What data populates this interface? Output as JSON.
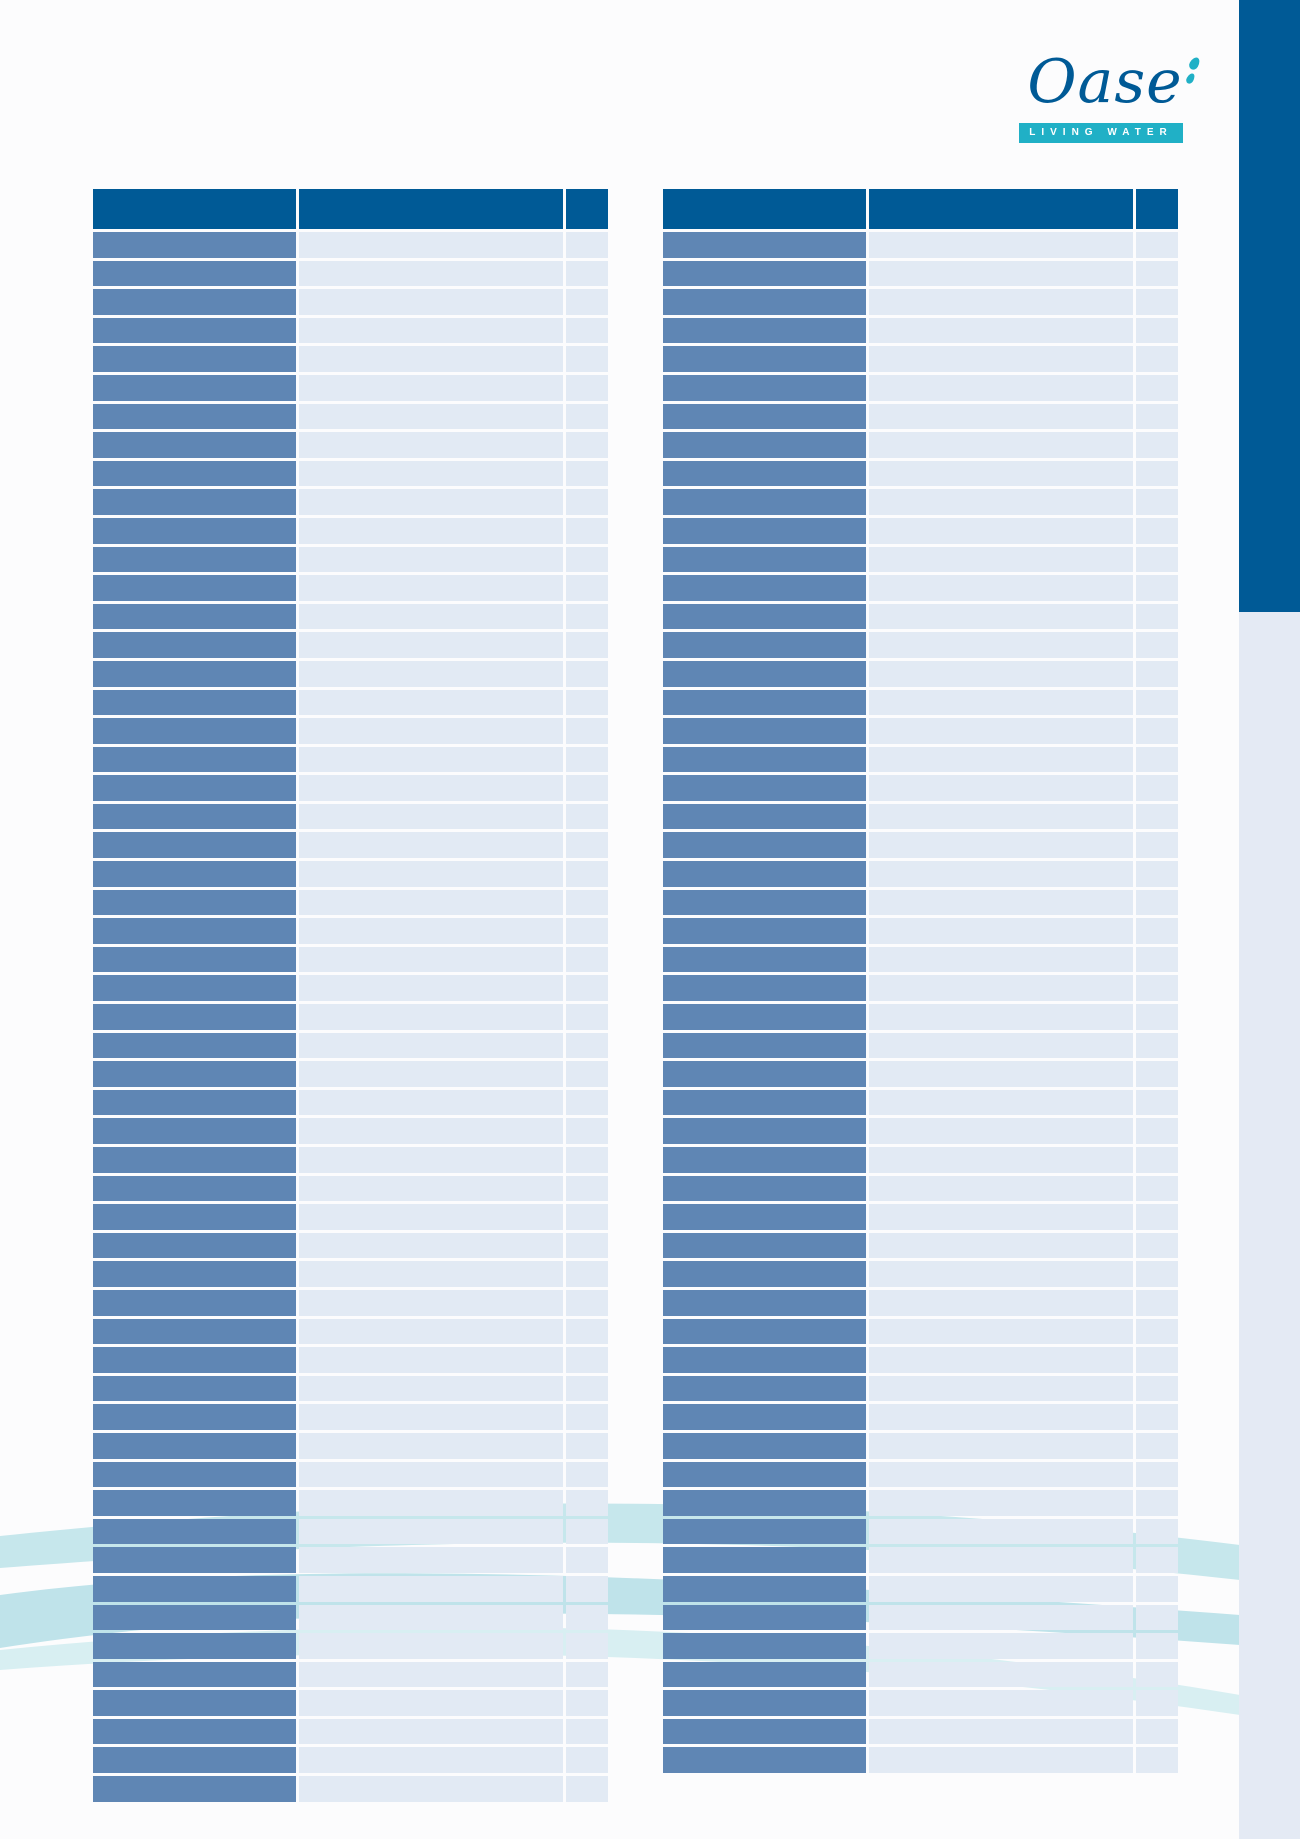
{
  "brand": {
    "logo_text": "Oase",
    "tagline": "LIVING WATER"
  },
  "colors": {
    "header_blue": "#005a96",
    "col1_blue": "#5f86b4",
    "cell_light": "#e2eaf4",
    "side_light": "#e4eaf4",
    "wave_teal": "#b8e0e7",
    "logo_cyan": "#20b0c6"
  },
  "tables": [
    {
      "columns": [
        "",
        "",
        ""
      ],
      "rows": [
        [
          "",
          "",
          ""
        ],
        [
          "",
          "",
          ""
        ],
        [
          "",
          "",
          ""
        ],
        [
          "",
          "",
          ""
        ],
        [
          "",
          "",
          ""
        ],
        [
          "",
          "",
          ""
        ],
        [
          "",
          "",
          ""
        ],
        [
          "",
          "",
          ""
        ],
        [
          "",
          "",
          ""
        ],
        [
          "",
          "",
          ""
        ],
        [
          "",
          "",
          ""
        ],
        [
          "",
          "",
          ""
        ],
        [
          "",
          "",
          ""
        ],
        [
          "",
          "",
          ""
        ],
        [
          "",
          "",
          ""
        ],
        [
          "",
          "",
          ""
        ],
        [
          "",
          "",
          ""
        ],
        [
          "",
          "",
          ""
        ],
        [
          "",
          "",
          ""
        ],
        [
          "",
          "",
          ""
        ],
        [
          "",
          "",
          ""
        ],
        [
          "",
          "",
          ""
        ],
        [
          "",
          "",
          ""
        ],
        [
          "",
          "",
          ""
        ],
        [
          "",
          "",
          ""
        ],
        [
          "",
          "",
          ""
        ],
        [
          "",
          "",
          ""
        ],
        [
          "",
          "",
          ""
        ],
        [
          "",
          "",
          ""
        ],
        [
          "",
          "",
          ""
        ],
        [
          "",
          "",
          ""
        ],
        [
          "",
          "",
          ""
        ],
        [
          "",
          "",
          ""
        ],
        [
          "",
          "",
          ""
        ],
        [
          "",
          "",
          ""
        ],
        [
          "",
          "",
          ""
        ],
        [
          "",
          "",
          ""
        ],
        [
          "",
          "",
          ""
        ],
        [
          "",
          "",
          ""
        ],
        [
          "",
          "",
          ""
        ],
        [
          "",
          "",
          ""
        ],
        [
          "",
          "",
          ""
        ],
        [
          "",
          "",
          ""
        ],
        [
          "",
          "",
          ""
        ],
        [
          "",
          "",
          ""
        ],
        [
          "",
          "",
          ""
        ],
        [
          "",
          "",
          ""
        ],
        [
          "",
          "",
          ""
        ],
        [
          "",
          "",
          ""
        ],
        [
          "",
          "",
          ""
        ],
        [
          "",
          "",
          ""
        ],
        [
          "",
          "",
          ""
        ],
        [
          "",
          "",
          ""
        ],
        [
          "",
          "",
          ""
        ],
        [
          "",
          "",
          ""
        ]
      ]
    },
    {
      "columns": [
        "",
        "",
        ""
      ],
      "rows": [
        [
          "",
          "",
          ""
        ],
        [
          "",
          "",
          ""
        ],
        [
          "",
          "",
          ""
        ],
        [
          "",
          "",
          ""
        ],
        [
          "",
          "",
          ""
        ],
        [
          "",
          "",
          ""
        ],
        [
          "",
          "",
          ""
        ],
        [
          "",
          "",
          ""
        ],
        [
          "",
          "",
          ""
        ],
        [
          "",
          "",
          ""
        ],
        [
          "",
          "",
          ""
        ],
        [
          "",
          "",
          ""
        ],
        [
          "",
          "",
          ""
        ],
        [
          "",
          "",
          ""
        ],
        [
          "",
          "",
          ""
        ],
        [
          "",
          "",
          ""
        ],
        [
          "",
          "",
          ""
        ],
        [
          "",
          "",
          ""
        ],
        [
          "",
          "",
          ""
        ],
        [
          "",
          "",
          ""
        ],
        [
          "",
          "",
          ""
        ],
        [
          "",
          "",
          ""
        ],
        [
          "",
          "",
          ""
        ],
        [
          "",
          "",
          ""
        ],
        [
          "",
          "",
          ""
        ],
        [
          "",
          "",
          ""
        ],
        [
          "",
          "",
          ""
        ],
        [
          "",
          "",
          ""
        ],
        [
          "",
          "",
          ""
        ],
        [
          "",
          "",
          ""
        ],
        [
          "",
          "",
          ""
        ],
        [
          "",
          "",
          ""
        ],
        [
          "",
          "",
          ""
        ],
        [
          "",
          "",
          ""
        ],
        [
          "",
          "",
          ""
        ],
        [
          "",
          "",
          ""
        ],
        [
          "",
          "",
          ""
        ],
        [
          "",
          "",
          ""
        ],
        [
          "",
          "",
          ""
        ],
        [
          "",
          "",
          ""
        ],
        [
          "",
          "",
          ""
        ],
        [
          "",
          "",
          ""
        ],
        [
          "",
          "",
          ""
        ],
        [
          "",
          "",
          ""
        ],
        [
          "",
          "",
          ""
        ],
        [
          "",
          "",
          ""
        ],
        [
          "",
          "",
          ""
        ],
        [
          "",
          "",
          ""
        ],
        [
          "",
          "",
          ""
        ],
        [
          "",
          "",
          ""
        ],
        [
          "",
          "",
          ""
        ],
        [
          "",
          "",
          ""
        ],
        [
          "",
          "",
          ""
        ],
        [
          "",
          "",
          ""
        ]
      ]
    }
  ]
}
